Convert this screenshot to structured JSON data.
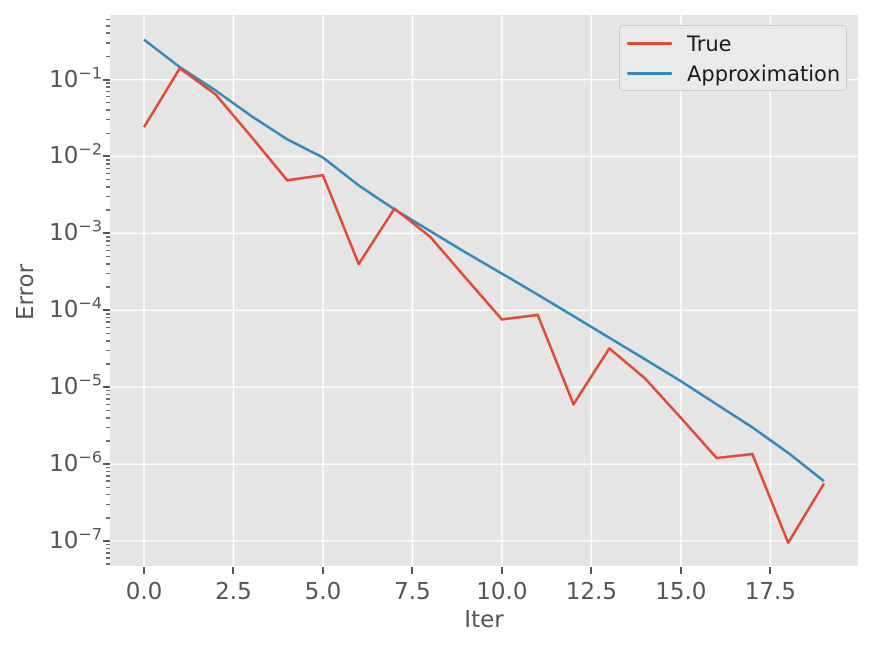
{
  "figure": {
    "background": "#FFFFFF",
    "plot_background": "#E5E5E5",
    "grid_color": "#FFFFFF",
    "tick_text_color": "#555555",
    "axis_label_color": "#555555",
    "legend_text_color": "#1B1B1B",
    "legend_face_color": "#EAEAEA",
    "legend_edge_color": "#CBCBCB"
  },
  "chart_data": {
    "type": "line",
    "title": "",
    "xlabel": "Iter",
    "ylabel": "Error",
    "yscale": "log",
    "grid": true,
    "legend_position": "upper right",
    "xlim": [
      -0.95,
      19.95
    ],
    "ylim": [
      4.74e-08,
      0.69
    ],
    "x": [
      0,
      1,
      2,
      3,
      4,
      5,
      6,
      7,
      8,
      9,
      10,
      11,
      12,
      13,
      14,
      15,
      16,
      17,
      18,
      19
    ],
    "series": [
      {
        "name": "True",
        "color": "#E24A33",
        "values": [
          0.024,
          0.14,
          0.064,
          0.018,
          0.0049,
          0.0057,
          0.0004,
          0.0021,
          0.0009,
          0.00026,
          7.6e-05,
          8.7e-05,
          6e-06,
          3.2e-05,
          1.3e-05,
          4e-06,
          1.2e-06,
          1.35e-06,
          9.5e-08,
          5.6e-07
        ]
      },
      {
        "name": "Approximation",
        "color": "#348ABD",
        "values": [
          0.33,
          0.145,
          0.072,
          0.0335,
          0.0167,
          0.0097,
          0.0042,
          0.00205,
          0.00107,
          0.00056,
          0.0003,
          0.00016,
          8.4e-05,
          4.4e-05,
          2.3e-05,
          1.2e-05,
          6e-06,
          3e-06,
          1.4e-06,
          6e-07
        ]
      }
    ],
    "x_ticks": {
      "values": [
        0,
        2.5,
        5,
        7.5,
        10,
        12.5,
        15,
        17.5
      ],
      "labels": [
        "0.0",
        "2.5",
        "5.0",
        "7.5",
        "10.0",
        "12.5",
        "15.0",
        "17.5"
      ]
    },
    "y_ticks": {
      "base": "10",
      "exponents": [
        -1,
        -2,
        -3,
        -4,
        -5,
        -6,
        -7
      ]
    }
  }
}
